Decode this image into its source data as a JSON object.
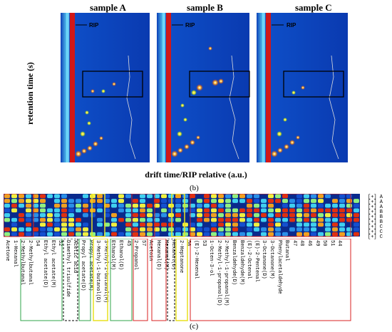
{
  "panel_b": {
    "samples": [
      "sample A",
      "sample B",
      "sample C"
    ],
    "y_axis_label": "retention time (s)",
    "x_axis_label": "drift time/RIP relative (a.u.)",
    "rip_label": "RIP",
    "caption": "(b)"
  },
  "panel_c": {
    "caption": "(c)",
    "row_labels": [
      "[+] A",
      "[+] A",
      "[+] A",
      "[+] B",
      "[+] B",
      "[+] B",
      "[+] C",
      "[+] C",
      "[+] C"
    ],
    "compounds": [
      "Acetone",
      "1-Hexanal",
      "2-Methylbutanal",
      "2-Methylbutanal",
      "54",
      "Ethyl acetate(D)",
      "Ethyl acetate(M)",
      "52",
      "Dimethyl trisulfide",
      "Acetic acid",
      "Propyl acetate(D)",
      "Propyl acetate(M)",
      "3-Methyl-1-butanol(D)",
      "3-Methyl-1-butanol(M)",
      "Ethanol(M)",
      "Ethanol(D)",
      "45",
      "2-Propanol",
      "57",
      "Acetoin",
      "Hexanal(D)",
      "Hexanal(M)",
      "Hexanal(D)",
      "2-Heptanone",
      "56",
      "(E)-2-Hexenal",
      "53",
      "1-Octen-3-ol",
      "2-Methyl-1-propanol(D)",
      "2-Methyl-1-propanol(M)",
      "Benzaldehyde(D)",
      "Benzaldehyde(M)",
      "(E)-2-Octenal",
      "(E)-2-Pentenal",
      "3-Octanone(D)",
      "3-Octanone(M)",
      "Phenylacetaldehyde",
      "Butanal",
      "47",
      "48",
      "46",
      "49",
      "50",
      "51",
      "44"
    ],
    "row_values_right": [
      "0/0",
      "0/0",
      "0/0",
      "0/0",
      "0/0",
      "0/0",
      "0/0",
      "0/0",
      "0/0"
    ]
  },
  "colors": {
    "heatmap_bg": "#0a2a8c",
    "rip_line": "#d01818",
    "box_green": "#2fa64a",
    "box_yellow": "#e8e020",
    "box_red": "#d82020"
  }
}
